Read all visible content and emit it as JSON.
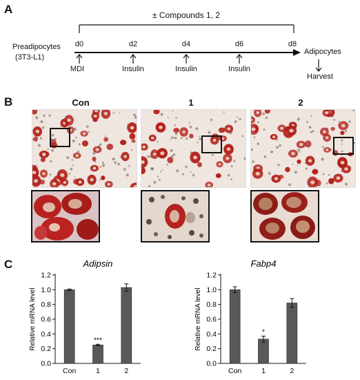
{
  "panelA": {
    "letter": "A",
    "treatment": "± Compounds 1, 2",
    "cell_line_line1": "Preadipocytes",
    "cell_line_line2": "(3T3-L1)",
    "days": [
      "d0",
      "d2",
      "d4",
      "d6",
      "d8"
    ],
    "additions": [
      "MDI",
      "Insulin",
      "Insulin",
      "Insulin"
    ],
    "end_state": "Adipocytes",
    "end_action": "Harvest"
  },
  "panelB": {
    "letter": "B",
    "groups": [
      "Con",
      "1",
      "2"
    ],
    "colors": {
      "stain": "#b3211c",
      "background": "#efe6df"
    }
  },
  "panelC": {
    "letter": "C"
  },
  "chart_data": [
    {
      "type": "bar",
      "title": "Adipsin",
      "categories": [
        "Con",
        "1",
        "2"
      ],
      "values": [
        1.0,
        0.25,
        1.03
      ],
      "errors": [
        0.01,
        0.01,
        0.05
      ],
      "significance": [
        "",
        "***",
        ""
      ],
      "ylabel": "Relative mRNA level",
      "ylim": [
        0,
        1.2
      ],
      "yticks": [
        "0.0",
        "0.2",
        "0.4",
        "0.6",
        "0.8",
        "1.0",
        "1.2"
      ],
      "bar_color": "#595959"
    },
    {
      "type": "bar",
      "title": "Fabp4",
      "categories": [
        "Con",
        "1",
        "2"
      ],
      "values": [
        1.0,
        0.33,
        0.82
      ],
      "errors": [
        0.04,
        0.04,
        0.06
      ],
      "significance": [
        "",
        "*",
        ""
      ],
      "ylabel": "Relative mRNA level",
      "ylim": [
        0,
        1.2
      ],
      "yticks": [
        "0.0",
        "0.2",
        "0.4",
        "0.6",
        "0.8",
        "1.0",
        "1.2"
      ],
      "bar_color": "#595959"
    }
  ]
}
